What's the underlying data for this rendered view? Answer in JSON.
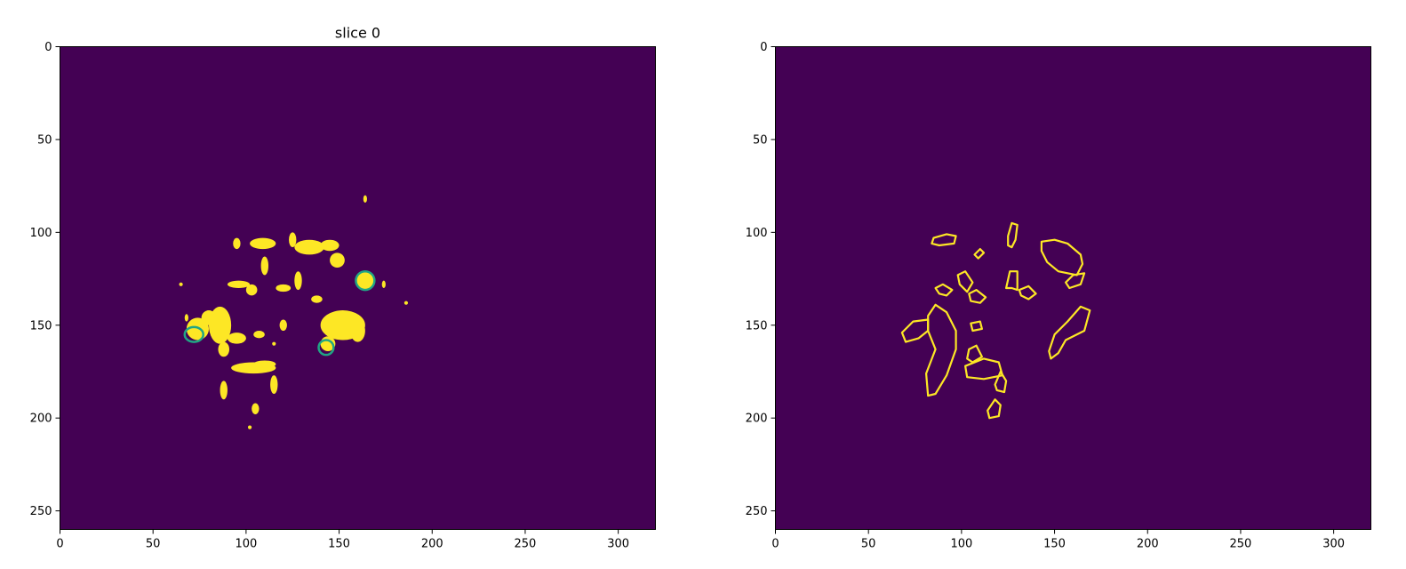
{
  "chart_data": [
    {
      "type": "heatmap",
      "title": "slice 0",
      "xlabel": "",
      "ylabel": "",
      "xlim": [
        0,
        320
      ],
      "ylim": [
        260,
        0
      ],
      "xticks": [
        0,
        50,
        100,
        150,
        200,
        250,
        300
      ],
      "yticks": [
        0,
        50,
        100,
        150,
        200,
        250
      ],
      "colors": {
        "background": "#440154",
        "foreground": "#fde725",
        "overlay": "#21a585"
      },
      "blobs": [
        [
          109,
          106,
          7,
          3
        ],
        [
          95,
          106,
          2,
          3
        ],
        [
          125,
          104,
          2,
          4
        ],
        [
          134,
          108,
          8,
          4
        ],
        [
          145,
          107,
          5,
          3
        ],
        [
          149,
          115,
          4,
          4
        ],
        [
          164,
          126,
          5,
          5
        ],
        [
          110,
          118,
          2,
          5
        ],
        [
          128,
          126,
          2,
          5
        ],
        [
          120,
          130,
          4,
          2
        ],
        [
          96,
          128,
          6,
          2
        ],
        [
          103,
          131,
          3,
          3
        ],
        [
          152,
          150,
          12,
          8
        ],
        [
          160,
          153,
          4,
          6
        ],
        [
          144,
          160,
          4,
          4
        ],
        [
          74,
          152,
          6,
          6
        ],
        [
          80,
          146,
          4,
          4
        ],
        [
          86,
          150,
          6,
          10
        ],
        [
          95,
          157,
          5,
          3
        ],
        [
          104,
          173,
          12,
          3
        ],
        [
          110,
          171,
          6,
          2
        ],
        [
          115,
          182,
          2,
          5
        ],
        [
          107,
          155,
          3,
          2
        ],
        [
          120,
          150,
          2,
          3
        ],
        [
          88,
          163,
          3,
          4
        ],
        [
          105,
          195,
          2,
          3
        ],
        [
          88,
          185,
          2,
          5
        ],
        [
          138,
          136,
          3,
          2
        ],
        [
          186,
          138,
          1,
          1
        ],
        [
          164,
          82,
          1,
          2
        ],
        [
          174,
          128,
          1,
          2
        ],
        [
          68,
          146,
          1,
          2
        ],
        [
          65,
          128,
          1,
          1
        ],
        [
          115,
          160,
          1,
          1
        ],
        [
          102,
          205,
          1,
          1
        ]
      ],
      "rings": [
        [
          72,
          155,
          5,
          4
        ],
        [
          164,
          126,
          5,
          5
        ],
        [
          143,
          162,
          4,
          4
        ]
      ]
    },
    {
      "type": "heatmap",
      "title": "",
      "xlabel": "",
      "ylabel": "",
      "xlim": [
        0,
        320
      ],
      "ylim": [
        260,
        0
      ],
      "xticks": [
        0,
        50,
        100,
        150,
        200,
        250,
        300
      ],
      "yticks": [
        0,
        50,
        100,
        150,
        200,
        250
      ],
      "colors": {
        "background": "#440154",
        "foreground": "#fde725"
      },
      "contours": [
        [
          [
            85,
            103
          ],
          [
            92,
            101
          ],
          [
            97,
            102
          ],
          [
            96,
            106
          ],
          [
            88,
            107
          ],
          [
            84,
            106
          ]
        ],
        [
          [
            107,
            112
          ],
          [
            110,
            109
          ],
          [
            112,
            111
          ],
          [
            109,
            114
          ]
        ],
        [
          [
            125,
            102
          ],
          [
            127,
            95
          ],
          [
            130,
            96
          ],
          [
            129,
            104
          ],
          [
            127,
            108
          ],
          [
            125,
            107
          ]
        ],
        [
          [
            143,
            105
          ],
          [
            150,
            104
          ],
          [
            157,
            106
          ],
          [
            164,
            112
          ],
          [
            165,
            117
          ],
          [
            162,
            123
          ],
          [
            152,
            121
          ],
          [
            146,
            116
          ],
          [
            143,
            110
          ]
        ],
        [
          [
            156,
            127
          ],
          [
            160,
            123
          ],
          [
            166,
            122
          ],
          [
            164,
            128
          ],
          [
            158,
            130
          ]
        ],
        [
          [
            86,
            130
          ],
          [
            90,
            128
          ],
          [
            95,
            131
          ],
          [
            92,
            134
          ],
          [
            88,
            133
          ]
        ],
        [
          [
            98,
            123
          ],
          [
            102,
            121
          ],
          [
            106,
            127
          ],
          [
            103,
            132
          ],
          [
            99,
            128
          ]
        ],
        [
          [
            104,
            133
          ],
          [
            108,
            131
          ],
          [
            113,
            135
          ],
          [
            110,
            138
          ],
          [
            105,
            137
          ]
        ],
        [
          [
            124,
            130
          ],
          [
            126,
            121
          ],
          [
            130,
            121
          ],
          [
            130,
            131
          ],
          [
            127,
            130
          ]
        ],
        [
          [
            131,
            131
          ],
          [
            136,
            129
          ],
          [
            140,
            133
          ],
          [
            136,
            136
          ],
          [
            132,
            134
          ]
        ],
        [
          [
            105,
            149
          ],
          [
            110,
            148
          ],
          [
            111,
            152
          ],
          [
            106,
            153
          ]
        ],
        [
          [
            77,
            157
          ],
          [
            70,
            159
          ],
          [
            68,
            154
          ],
          [
            74,
            148
          ],
          [
            82,
            147
          ],
          [
            82,
            153
          ]
        ],
        [
          [
            82,
            145
          ],
          [
            86,
            139
          ],
          [
            92,
            143
          ],
          [
            97,
            153
          ],
          [
            97,
            163
          ],
          [
            92,
            177
          ],
          [
            86,
            187
          ],
          [
            82,
            188
          ],
          [
            81,
            176
          ],
          [
            86,
            163
          ],
          [
            82,
            153
          ]
        ],
        [
          [
            104,
            163
          ],
          [
            108,
            161
          ],
          [
            111,
            167
          ],
          [
            106,
            170
          ],
          [
            103,
            168
          ]
        ],
        [
          [
            102,
            172
          ],
          [
            112,
            168
          ],
          [
            120,
            170
          ],
          [
            122,
            177
          ],
          [
            112,
            179
          ],
          [
            103,
            178
          ]
        ],
        [
          [
            118,
            182
          ],
          [
            121,
            175
          ],
          [
            124,
            180
          ],
          [
            123,
            186
          ],
          [
            119,
            185
          ]
        ],
        [
          [
            114,
            196
          ],
          [
            118,
            190
          ],
          [
            121,
            193
          ],
          [
            120,
            199
          ],
          [
            115,
            200
          ]
        ],
        [
          [
            147,
            164
          ],
          [
            150,
            155
          ],
          [
            157,
            148
          ],
          [
            164,
            140
          ],
          [
            169,
            142
          ],
          [
            166,
            153
          ],
          [
            156,
            158
          ],
          [
            152,
            165
          ],
          [
            148,
            168
          ]
        ]
      ]
    }
  ]
}
